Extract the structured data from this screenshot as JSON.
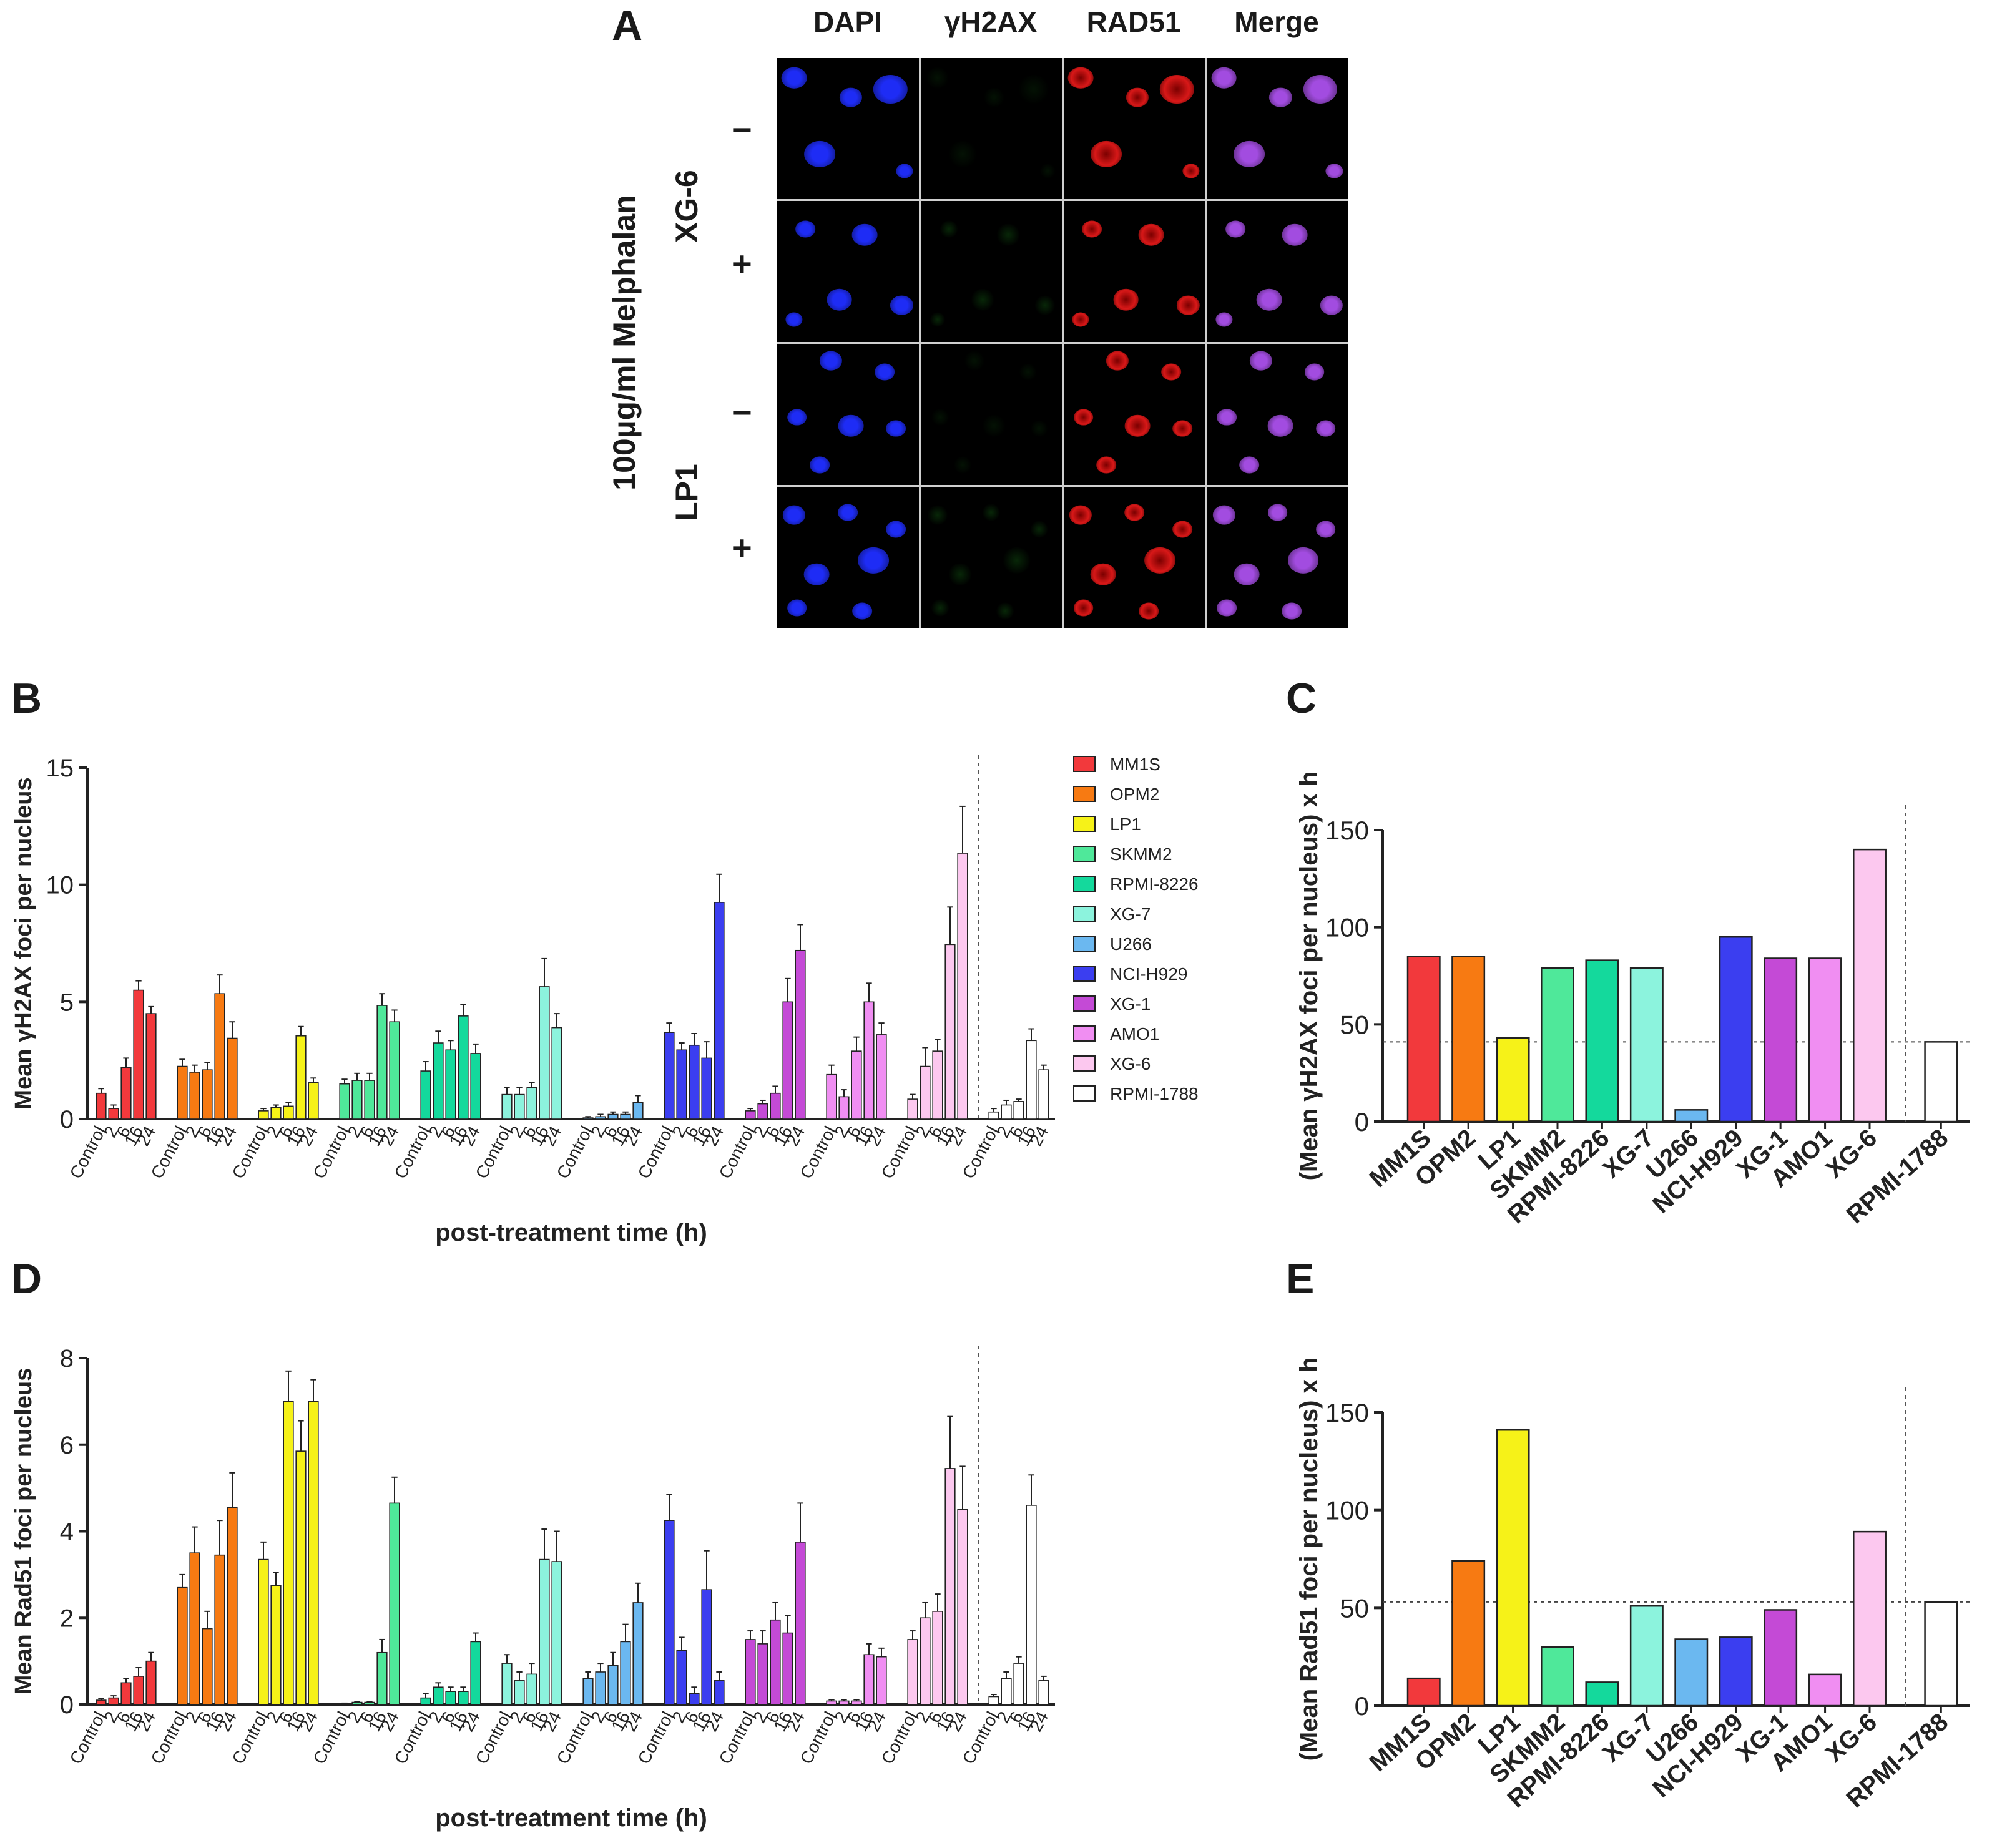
{
  "panelA": {
    "letter": "A",
    "channels": [
      "DAPI",
      "γH2AX",
      "RAD51",
      "Merge"
    ],
    "treatment_label": "100µg/ml Melphalan",
    "cell_lines": [
      "XG-6",
      "LP1"
    ],
    "row_signs": [
      "−",
      "+",
      "−",
      "+"
    ],
    "channel_colors": [
      "#1e2cf5",
      "#2bd42b",
      "#d81818",
      "#a24ce0"
    ]
  },
  "panel_letters": {
    "B": "B",
    "C": "C",
    "D": "D",
    "E": "E"
  },
  "legend": [
    {
      "name": "MM1S",
      "color": "#f2393c"
    },
    {
      "name": "OPM2",
      "color": "#f77a12"
    },
    {
      "name": "LP1",
      "color": "#f6f218"
    },
    {
      "name": "SKMM2",
      "color": "#4fe89a"
    },
    {
      "name": "RPMI-8226",
      "color": "#14d99c"
    },
    {
      "name": "XG-7",
      "color": "#8cf3dd"
    },
    {
      "name": "U266",
      "color": "#6bb8f0"
    },
    {
      "name": "NCI-H929",
      "color": "#3b3ef0"
    },
    {
      "name": "XG-1",
      "color": "#c44ad6"
    },
    {
      "name": "AMO1",
      "color": "#f08ef2"
    },
    {
      "name": "XG-6",
      "color": "#fcc8ef"
    },
    {
      "name": "RPMI-1788",
      "color": "#ffffff"
    }
  ],
  "chart_data": [
    {
      "id": "B",
      "type": "bar",
      "ylabel": "Mean γH2AX foci per nucleus",
      "xlabel": "post-treatment time (h)",
      "ylim": [
        0,
        15
      ],
      "yticks": [
        0,
        5,
        10,
        15
      ],
      "time_labels": [
        "Control",
        "2",
        "6",
        "16",
        "24"
      ],
      "series": [
        {
          "name": "MM1S",
          "values": [
            1.1,
            0.45,
            2.2,
            5.5,
            4.5
          ],
          "errors": [
            0.2,
            0.15,
            0.4,
            0.4,
            0.3
          ]
        },
        {
          "name": "OPM2",
          "values": [
            2.25,
            2.0,
            2.1,
            5.35,
            3.45
          ],
          "errors": [
            0.3,
            0.3,
            0.3,
            0.8,
            0.7
          ]
        },
        {
          "name": "LP1",
          "values": [
            0.35,
            0.5,
            0.55,
            3.55,
            1.55
          ],
          "errors": [
            0.1,
            0.1,
            0.15,
            0.4,
            0.2
          ]
        },
        {
          "name": "SKMM2",
          "values": [
            1.5,
            1.65,
            1.65,
            4.85,
            4.15
          ],
          "errors": [
            0.2,
            0.3,
            0.3,
            0.5,
            0.5
          ]
        },
        {
          "name": "RPMI-8226",
          "values": [
            2.05,
            3.25,
            2.95,
            4.4,
            2.8
          ],
          "errors": [
            0.4,
            0.5,
            0.4,
            0.5,
            0.4
          ]
        },
        {
          "name": "XG-7",
          "values": [
            1.05,
            1.05,
            1.35,
            5.65,
            3.9
          ],
          "errors": [
            0.3,
            0.3,
            0.2,
            1.2,
            0.6
          ]
        },
        {
          "name": "U266",
          "values": [
            0.05,
            0.1,
            0.2,
            0.2,
            0.7
          ],
          "errors": [
            0.05,
            0.1,
            0.1,
            0.1,
            0.3
          ]
        },
        {
          "name": "NCI-H929",
          "values": [
            3.7,
            2.95,
            3.15,
            2.6,
            9.25
          ],
          "errors": [
            0.4,
            0.3,
            0.5,
            0.7,
            1.2
          ]
        },
        {
          "name": "XG-1",
          "values": [
            0.35,
            0.65,
            1.1,
            5.0,
            7.2
          ],
          "errors": [
            0.1,
            0.15,
            0.3,
            1.0,
            1.1
          ]
        },
        {
          "name": "AMO1",
          "values": [
            1.9,
            0.95,
            2.9,
            5.0,
            3.6
          ],
          "errors": [
            0.4,
            0.3,
            0.6,
            0.8,
            0.5
          ]
        },
        {
          "name": "XG-6",
          "values": [
            0.85,
            2.25,
            2.9,
            7.45,
            11.35
          ],
          "errors": [
            0.2,
            0.8,
            0.5,
            1.6,
            2.0
          ]
        },
        {
          "name": "RPMI-1788",
          "values": [
            0.3,
            0.6,
            0.75,
            3.35,
            2.1
          ],
          "errors": [
            0.15,
            0.2,
            0.1,
            0.5,
            0.2
          ]
        }
      ]
    },
    {
      "id": "C",
      "type": "bar",
      "ylabel": "(Mean γH2AX foci per nucleus) x h",
      "ylim": [
        0,
        150
      ],
      "yticks": [
        0,
        50,
        100,
        150
      ],
      "reference_line": 41,
      "categories": [
        "MM1S",
        "OPM2",
        "LP1",
        "SKMM2",
        "RPMI-8226",
        "XG-7",
        "U266",
        "NCI-H929",
        "XG-1",
        "AMO1",
        "XG-6",
        "RPMI-1788"
      ],
      "values": [
        85,
        85,
        43,
        79,
        83,
        79,
        6,
        95,
        84,
        84,
        140,
        41
      ]
    },
    {
      "id": "D",
      "type": "bar",
      "ylabel": "Mean Rad51 foci per nucleus",
      "xlabel": "post-treatment time (h)",
      "ylim": [
        0,
        8
      ],
      "yticks": [
        0,
        2,
        4,
        6,
        8
      ],
      "time_labels": [
        "Control",
        "2",
        "6",
        "16",
        "24"
      ],
      "series": [
        {
          "name": "MM1S",
          "values": [
            0.1,
            0.15,
            0.5,
            0.65,
            1.0
          ],
          "errors": [
            0.03,
            0.05,
            0.1,
            0.2,
            0.2
          ]
        },
        {
          "name": "OPM2",
          "values": [
            2.7,
            3.5,
            1.75,
            3.45,
            4.55
          ],
          "errors": [
            0.3,
            0.6,
            0.4,
            0.8,
            0.8
          ]
        },
        {
          "name": "LP1",
          "values": [
            3.35,
            2.75,
            7.0,
            5.85,
            7.0
          ],
          "errors": [
            0.4,
            0.3,
            0.7,
            0.7,
            0.5
          ]
        },
        {
          "name": "SKMM2",
          "values": [
            0.02,
            0.05,
            0.05,
            1.2,
            4.65
          ],
          "errors": [
            0.01,
            0.02,
            0.02,
            0.3,
            0.6
          ]
        },
        {
          "name": "RPMI-8226",
          "values": [
            0.15,
            0.4,
            0.3,
            0.3,
            1.45
          ],
          "errors": [
            0.1,
            0.1,
            0.1,
            0.1,
            0.2
          ]
        },
        {
          "name": "XG-7",
          "values": [
            0.95,
            0.55,
            0.7,
            3.35,
            3.3
          ],
          "errors": [
            0.2,
            0.2,
            0.25,
            0.7,
            0.7
          ]
        },
        {
          "name": "U266",
          "values": [
            0.6,
            0.75,
            0.9,
            1.45,
            2.35
          ],
          "errors": [
            0.15,
            0.2,
            0.3,
            0.4,
            0.45
          ]
        },
        {
          "name": "NCI-H929",
          "values": [
            4.25,
            1.25,
            0.25,
            2.65,
            0.55
          ],
          "errors": [
            0.6,
            0.3,
            0.15,
            0.9,
            0.2
          ]
        },
        {
          "name": "XG-1",
          "values": [
            1.5,
            1.4,
            1.95,
            1.65,
            3.75
          ],
          "errors": [
            0.2,
            0.3,
            0.4,
            0.4,
            0.9
          ]
        },
        {
          "name": "AMO1",
          "values": [
            0.08,
            0.08,
            0.08,
            1.15,
            1.1
          ],
          "errors": [
            0.03,
            0.03,
            0.03,
            0.25,
            0.2
          ]
        },
        {
          "name": "XG-6",
          "values": [
            1.5,
            2.0,
            2.15,
            5.45,
            4.5
          ],
          "errors": [
            0.2,
            0.35,
            0.4,
            1.2,
            1.0
          ]
        },
        {
          "name": "RPMI-1788",
          "values": [
            0.18,
            0.6,
            0.95,
            4.6,
            0.55
          ],
          "errors": [
            0.05,
            0.15,
            0.15,
            0.7,
            0.1
          ]
        }
      ]
    },
    {
      "id": "E",
      "type": "bar",
      "ylabel": "(Mean Rad51 foci per nucleus) x h",
      "ylim": [
        0,
        150
      ],
      "yticks": [
        0,
        50,
        100,
        150
      ],
      "reference_line": 53,
      "categories": [
        "MM1S",
        "OPM2",
        "LP1",
        "SKMM2",
        "RPMI-8226",
        "XG-7",
        "U266",
        "NCI-H929",
        "XG-1",
        "AMO1",
        "XG-6",
        "RPMI-1788"
      ],
      "values": [
        14,
        74,
        141,
        30,
        12,
        51,
        34,
        35,
        49,
        16,
        89,
        53
      ]
    }
  ]
}
